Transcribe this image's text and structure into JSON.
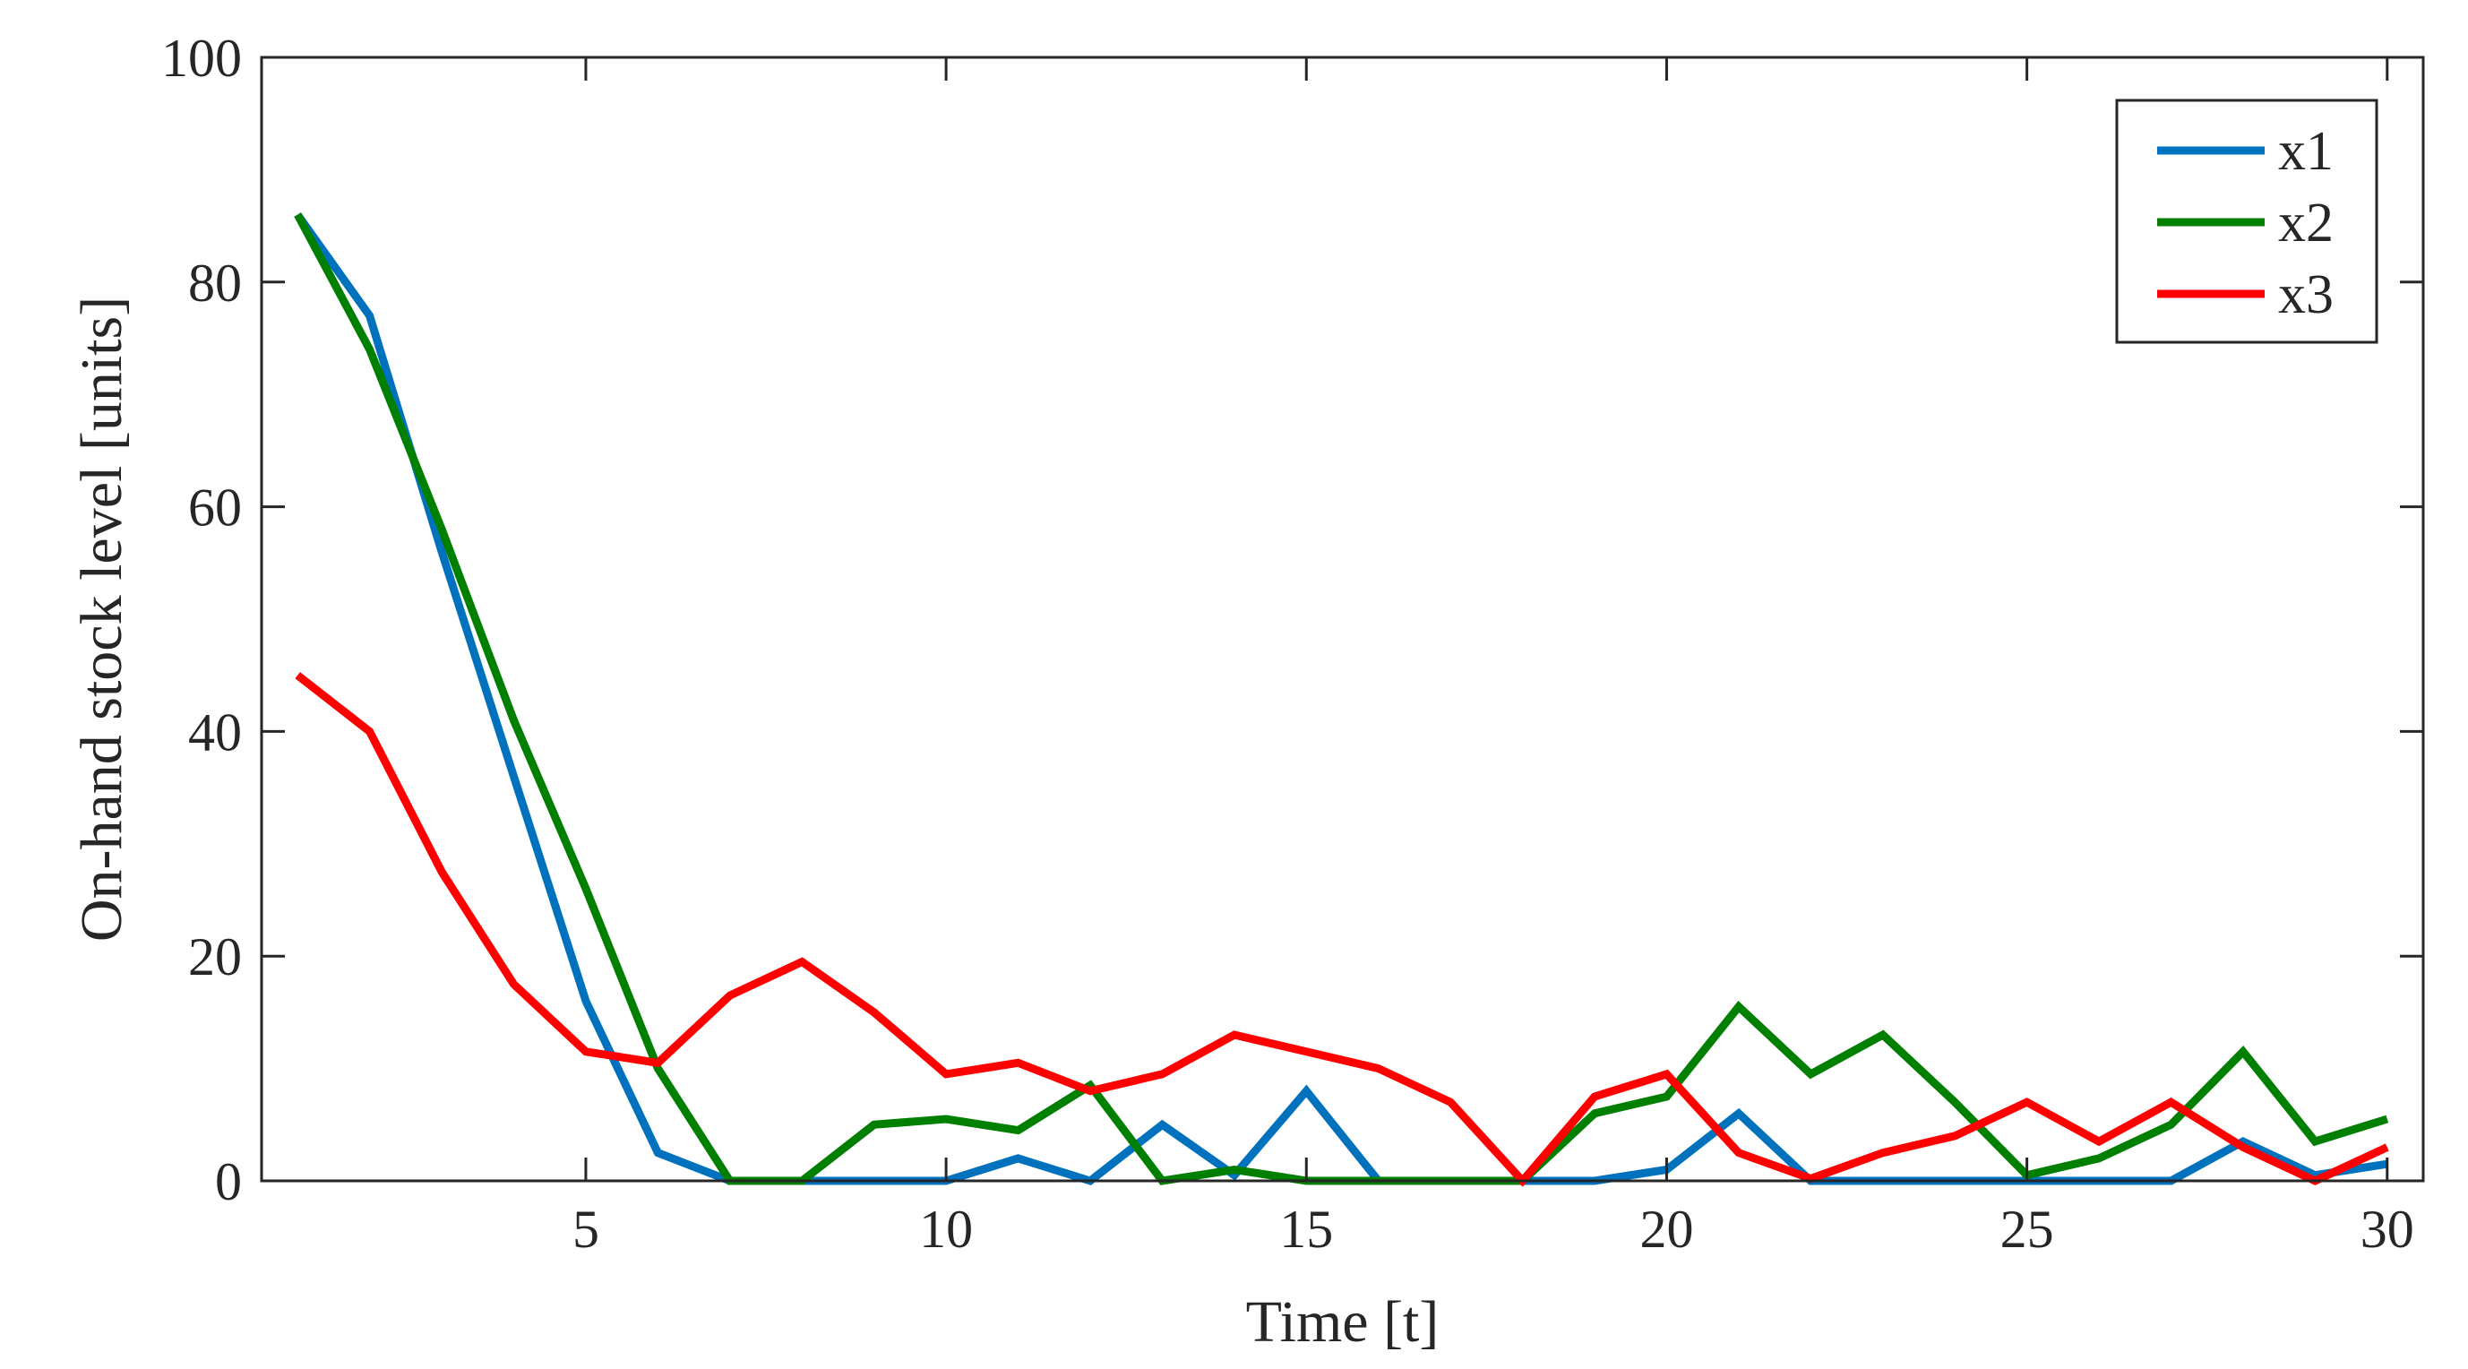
{
  "chart_data": {
    "type": "line",
    "xlabel": "Time [t]",
    "ylabel": "On-hand stock level [units]",
    "xlim": [
      0.5,
      30.5
    ],
    "ylim": [
      0,
      100
    ],
    "xticks": [
      5,
      10,
      15,
      20,
      25,
      30
    ],
    "yticks": [
      0,
      20,
      40,
      60,
      80,
      100
    ],
    "grid": false,
    "legend_position": "top-right",
    "x": [
      1,
      2,
      3,
      4,
      5,
      6,
      7,
      8,
      9,
      10,
      11,
      12,
      13,
      14,
      15,
      16,
      17,
      18,
      19,
      20,
      21,
      22,
      23,
      24,
      25,
      26,
      27,
      28,
      29,
      30
    ],
    "series": [
      {
        "name": "x1",
        "color": "#0072BD",
        "values": [
          86,
          77,
          56,
          36,
          16,
          2.5,
          0,
          0,
          0,
          0,
          2,
          0,
          5,
          0.5,
          8,
          0,
          0,
          0,
          0,
          1,
          6,
          0,
          0,
          0,
          0,
          0,
          0,
          3.5,
          0.5,
          1.5
        ]
      },
      {
        "name": "x2",
        "color": "#007F00",
        "values": [
          86,
          74,
          58,
          41,
          26,
          10,
          0,
          0,
          5,
          5.5,
          4.5,
          8.5,
          0,
          1,
          0,
          0,
          0,
          0,
          6,
          7.5,
          15.5,
          9.5,
          13,
          7,
          0.5,
          2,
          5,
          11.5,
          3.5,
          5.5
        ]
      },
      {
        "name": "x3",
        "color": "#FF0000",
        "values": [
          45,
          40,
          27.5,
          17.5,
          11.5,
          10.5,
          16.5,
          19.5,
          15,
          9.5,
          10.5,
          8,
          9.5,
          13,
          11.5,
          10,
          7,
          0,
          7.5,
          9.5,
          2.5,
          0.2,
          2.5,
          4,
          7,
          3.5,
          7,
          3,
          0,
          3
        ]
      }
    ]
  }
}
